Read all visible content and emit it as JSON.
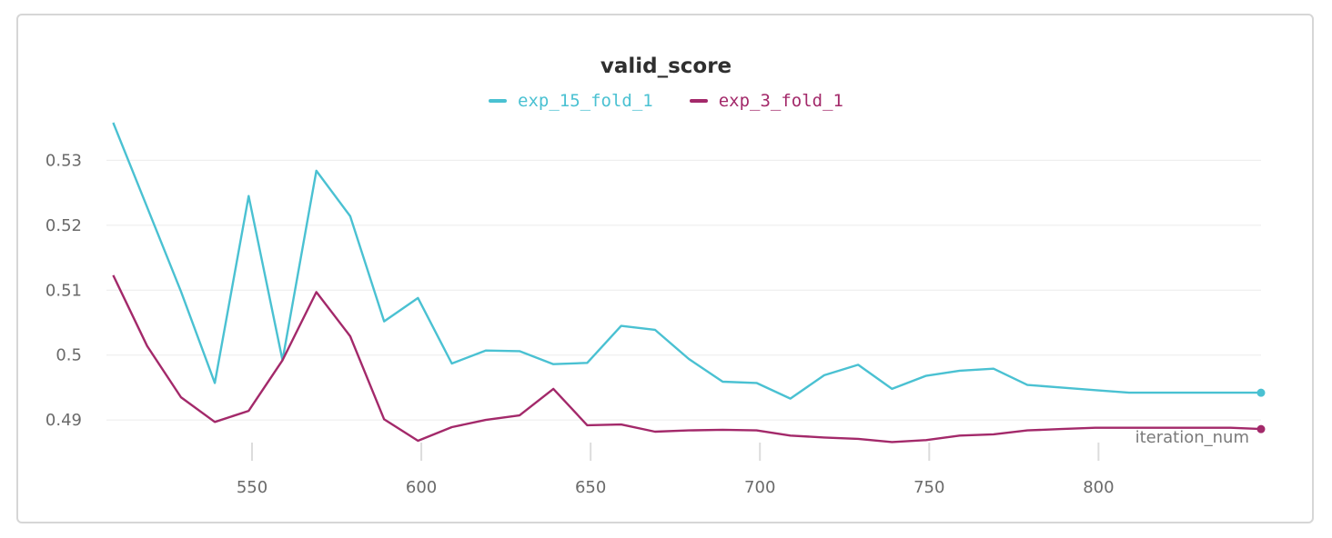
{
  "chart_data": {
    "type": "line",
    "title": "valid_score",
    "xlabel": "iteration_num",
    "ylabel": "",
    "xlim": [
      507,
      848
    ],
    "ylim": [
      0.4847,
      0.5365
    ],
    "xticks": [
      550,
      600,
      650,
      700,
      750,
      800
    ],
    "yticks": [
      0.49,
      0.5,
      0.51,
      0.52,
      0.53
    ],
    "ytick_labels": [
      "0.49",
      "0.5",
      "0.51",
      "0.52",
      "0.53"
    ],
    "grid": "horizontal",
    "legend_position": "top-center",
    "x": [
      509,
      519,
      529,
      539,
      549,
      559,
      569,
      579,
      589,
      599,
      609,
      619,
      629,
      639,
      649,
      659,
      669,
      679,
      689,
      699,
      709,
      719,
      729,
      739,
      749,
      759,
      769,
      779,
      789,
      799,
      809,
      819,
      829,
      839,
      848
    ],
    "series": [
      {
        "name": "exp_15_fold_1",
        "color": "#4ac1d2",
        "values": [
          0.5358,
          0.5228,
          0.5098,
          0.4957,
          0.5245,
          0.4992,
          0.5284,
          0.5214,
          0.5052,
          0.5088,
          0.4987,
          0.5007,
          0.5006,
          0.4986,
          0.4988,
          0.5045,
          0.5039,
          0.4994,
          0.4959,
          0.4957,
          0.4933,
          0.4969,
          0.4985,
          0.4948,
          0.4968,
          0.4976,
          0.4979,
          0.4954,
          0.495,
          0.4946,
          0.4942,
          0.4942,
          0.4942,
          0.4942,
          0.4942
        ]
      },
      {
        "name": "exp_3_fold_1",
        "color": "#a3296a",
        "values": [
          0.5123,
          0.5014,
          0.4935,
          0.4897,
          0.4914,
          0.4992,
          0.5097,
          0.5029,
          0.4901,
          0.4868,
          0.4889,
          0.49,
          0.4907,
          0.4948,
          0.4892,
          0.4893,
          0.4882,
          0.4884,
          0.4885,
          0.4884,
          0.4876,
          0.4873,
          0.4871,
          0.4866,
          0.4869,
          0.4876,
          0.4878,
          0.4884,
          0.4886,
          0.4888,
          0.4888,
          0.4888,
          0.4888,
          0.4888,
          0.4886
        ]
      }
    ]
  }
}
